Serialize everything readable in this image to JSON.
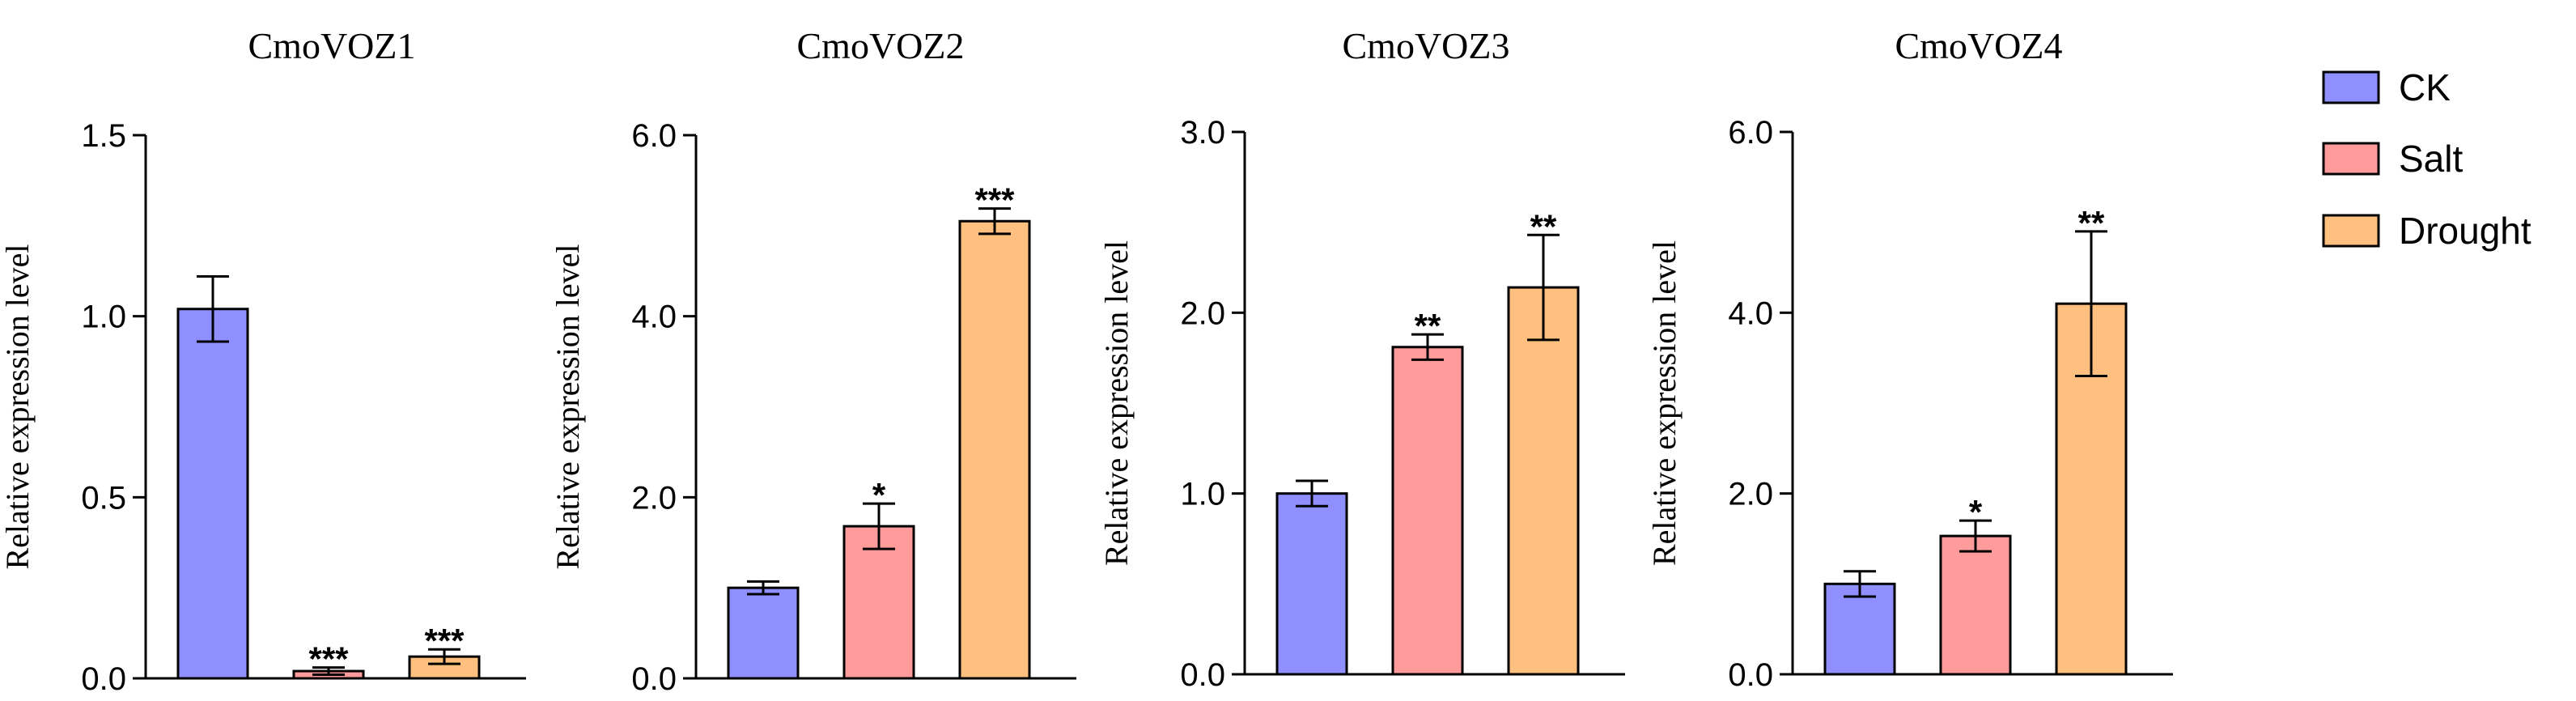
{
  "chart_data": [
    {
      "type": "bar",
      "title": "CmoVOZ1",
      "ylabel": "Relative expression level",
      "ylim": [
        0,
        1.5
      ],
      "yticks": [
        "0.0",
        "0.5",
        "1.0",
        "1.5"
      ],
      "categories": [
        "CK",
        "Salt",
        "Drought"
      ],
      "values": [
        1.02,
        0.02,
        0.06
      ],
      "errors": [
        0.09,
        0.01,
        0.02
      ],
      "significance": [
        "",
        "***",
        "***"
      ]
    },
    {
      "type": "bar",
      "title": "CmoVOZ2",
      "ylabel": "Relative expression level",
      "ylim": [
        0,
        6.0
      ],
      "yticks": [
        "0.0",
        "2.0",
        "4.0",
        "6.0"
      ],
      "categories": [
        "CK",
        "Salt",
        "Drought"
      ],
      "values": [
        1.0,
        1.68,
        5.05
      ],
      "errors": [
        0.07,
        0.25,
        0.14
      ],
      "significance": [
        "",
        "*",
        "***"
      ]
    },
    {
      "type": "bar",
      "title": "CmoVOZ3",
      "ylabel": "Relative expression level",
      "ylim": [
        0,
        3.0
      ],
      "yticks": [
        "0.0",
        "1.0",
        "2.0",
        "3.0"
      ],
      "categories": [
        "CK",
        "Salt",
        "Drought"
      ],
      "values": [
        1.0,
        1.81,
        2.14
      ],
      "errors": [
        0.07,
        0.07,
        0.29
      ],
      "significance": [
        "",
        "**",
        "**"
      ]
    },
    {
      "type": "bar",
      "title": "CmoVOZ4",
      "ylabel": "Relative expression level",
      "ylim": [
        0,
        6.0
      ],
      "yticks": [
        "0.0",
        "2.0",
        "4.0",
        "6.0"
      ],
      "categories": [
        "CK",
        "Salt",
        "Drought"
      ],
      "values": [
        1.0,
        1.53,
        4.1
      ],
      "errors": [
        0.14,
        0.17,
        0.8
      ],
      "significance": [
        "",
        "*",
        "**"
      ]
    }
  ],
  "legend": [
    {
      "label": "CK",
      "color": "#8f8fff"
    },
    {
      "label": "Salt",
      "color": "#ff9b9b"
    },
    {
      "label": "Drought",
      "color": "#ffbf7f"
    }
  ]
}
